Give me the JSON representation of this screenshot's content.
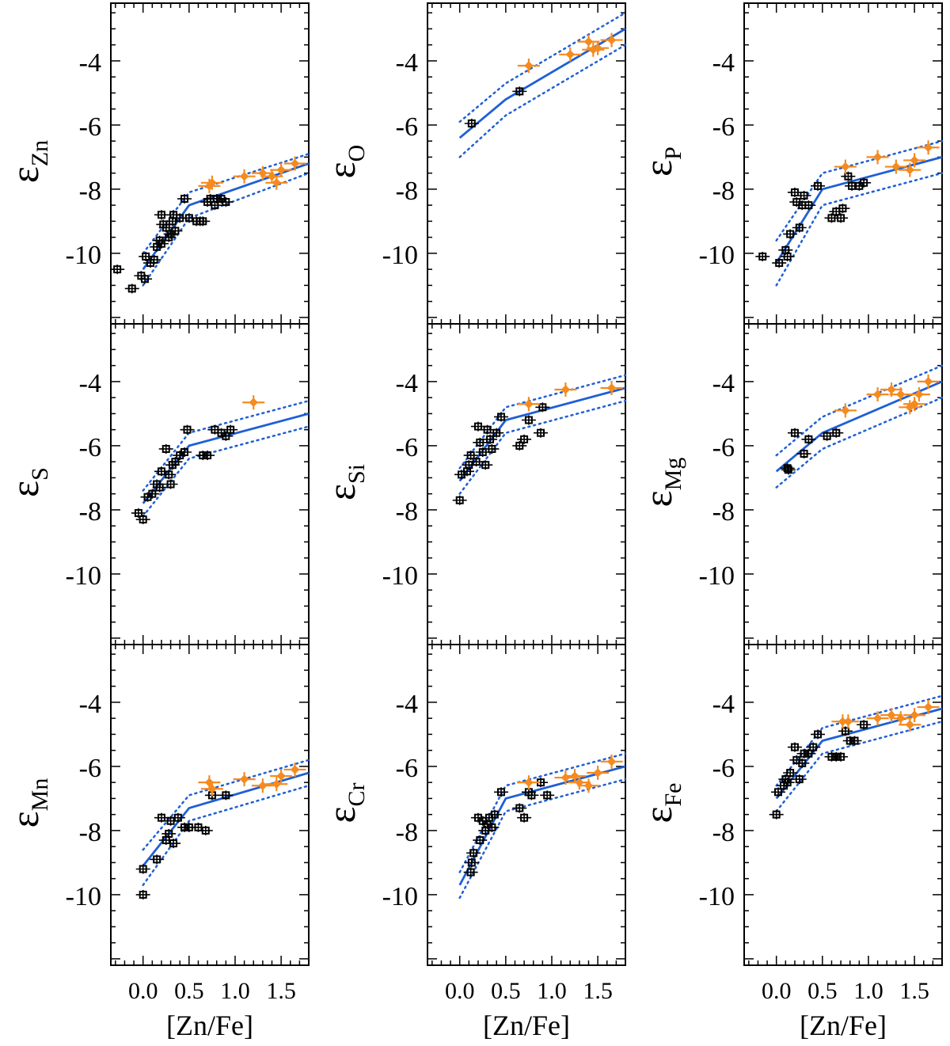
{
  "colors": {
    "model_line": "#1f5fd6",
    "orange_points": "#f58a1f",
    "black_points": "#000000",
    "axes": "#000000"
  },
  "chart_data": {
    "type": "scatter",
    "x_label": "[Zn/Fe]",
    "x_ticks": [
      "0.0",
      "0.5",
      "1.0",
      "1.5"
    ],
    "x_lim": [
      -0.35,
      1.8
    ],
    "y_lim": [
      -12.2,
      -2.2
    ],
    "y_ticks": [
      "-4",
      "-6",
      "-8",
      "-10"
    ],
    "panels": [
      {
        "element": "Zn",
        "ylabel_base": "ε",
        "ylabel_sub": "Zn",
        "model": {
          "x": [
            0.0,
            0.5,
            1.8
          ],
          "y": [
            -10.5,
            -8.5,
            -7.2
          ]
        },
        "band_upper": {
          "x": [
            0.0,
            0.5,
            1.8
          ],
          "y": [
            -10.0,
            -8.1,
            -6.9
          ]
        },
        "band_lower": {
          "x": [
            0.0,
            0.5,
            1.8
          ],
          "y": [
            -11.0,
            -8.9,
            -7.5
          ]
        },
        "black_points": [
          [
            -0.28,
            -10.5
          ],
          [
            -0.12,
            -11.1
          ],
          [
            -0.02,
            -10.7
          ],
          [
            0.02,
            -10.8
          ],
          [
            0.03,
            -10.1
          ],
          [
            0.08,
            -10.3
          ],
          [
            0.12,
            -10.2
          ],
          [
            0.15,
            -9.8
          ],
          [
            0.18,
            -9.6
          ],
          [
            0.2,
            -9.7
          ],
          [
            0.22,
            -9.1
          ],
          [
            0.2,
            -8.8
          ],
          [
            0.25,
            -9.2
          ],
          [
            0.28,
            -9.5
          ],
          [
            0.3,
            -9.4
          ],
          [
            0.32,
            -9.0
          ],
          [
            0.33,
            -8.8
          ],
          [
            0.35,
            -9.3
          ],
          [
            0.4,
            -8.9
          ],
          [
            0.45,
            -8.3
          ],
          [
            0.5,
            -8.9
          ],
          [
            0.58,
            -9.0
          ],
          [
            0.62,
            -9.0
          ],
          [
            0.65,
            -9.0
          ],
          [
            0.7,
            -8.4
          ],
          [
            0.73,
            -8.3
          ],
          [
            0.78,
            -8.5
          ],
          [
            0.8,
            -8.3
          ],
          [
            0.9,
            -8.4
          ],
          [
            0.85,
            -8.3
          ]
        ],
        "orange_points": [
          [
            0.72,
            -7.9
          ],
          [
            0.75,
            -7.8
          ],
          [
            1.1,
            -7.6
          ],
          [
            1.3,
            -7.5
          ],
          [
            1.4,
            -7.6
          ],
          [
            1.45,
            -7.8
          ],
          [
            1.5,
            -7.4
          ],
          [
            1.65,
            -7.2
          ]
        ]
      },
      {
        "element": "O",
        "ylabel_base": "ε",
        "ylabel_sub": "O",
        "model": {
          "x": [
            0.0,
            0.5,
            1.8
          ],
          "y": [
            -6.4,
            -5.2,
            -3.0
          ]
        },
        "band_upper": {
          "x": [
            0.0,
            0.5,
            1.8
          ],
          "y": [
            -5.9,
            -4.7,
            -2.5
          ]
        },
        "band_lower": {
          "x": [
            0.0,
            0.5,
            1.8
          ],
          "y": [
            -7.0,
            -5.7,
            -3.5
          ]
        },
        "black_points": [
          [
            0.13,
            -5.95
          ],
          [
            0.65,
            -4.95
          ]
        ],
        "orange_points": [
          [
            0.75,
            -4.15
          ],
          [
            1.2,
            -3.8
          ],
          [
            1.4,
            -3.4
          ],
          [
            1.45,
            -3.65
          ],
          [
            1.5,
            -3.6
          ],
          [
            1.65,
            -3.35
          ]
        ]
      },
      {
        "element": "P",
        "ylabel_base": "ε",
        "ylabel_sub": "P",
        "model": {
          "x": [
            0.0,
            0.5,
            1.8
          ],
          "y": [
            -10.3,
            -8.0,
            -7.0
          ]
        },
        "band_upper": {
          "x": [
            0.0,
            0.5,
            1.8
          ],
          "y": [
            -9.6,
            -7.5,
            -6.5
          ]
        },
        "band_lower": {
          "x": [
            0.0,
            0.5,
            1.8
          ],
          "y": [
            -11.0,
            -8.5,
            -7.5
          ]
        },
        "black_points": [
          [
            -0.15,
            -10.1
          ],
          [
            0.03,
            -10.3
          ],
          [
            0.1,
            -9.9
          ],
          [
            0.12,
            -10.1
          ],
          [
            0.15,
            -9.4
          ],
          [
            0.2,
            -8.1
          ],
          [
            0.22,
            -8.4
          ],
          [
            0.25,
            -9.2
          ],
          [
            0.28,
            -8.5
          ],
          [
            0.3,
            -8.2
          ],
          [
            0.35,
            -8.5
          ],
          [
            0.45,
            -7.9
          ],
          [
            0.6,
            -8.9
          ],
          [
            0.65,
            -8.7
          ],
          [
            0.7,
            -8.9
          ],
          [
            0.72,
            -8.6
          ],
          [
            0.78,
            -7.6
          ],
          [
            0.82,
            -7.9
          ],
          [
            0.9,
            -7.9
          ],
          [
            0.95,
            -7.8
          ]
        ],
        "orange_points": [
          [
            0.75,
            -7.3
          ],
          [
            1.1,
            -7.0
          ],
          [
            1.3,
            -7.3
          ],
          [
            1.45,
            -7.4
          ],
          [
            1.5,
            -7.1
          ],
          [
            1.65,
            -6.7
          ]
        ]
      },
      {
        "element": "S",
        "ylabel_base": "ε",
        "ylabel_sub": "S",
        "model": {
          "x": [
            0.0,
            0.5,
            1.8
          ],
          "y": [
            -7.8,
            -6.0,
            -5.0
          ]
        },
        "band_upper": {
          "x": [
            0.0,
            0.5,
            1.8
          ],
          "y": [
            -7.4,
            -5.6,
            -4.6
          ]
        },
        "band_lower": {
          "x": [
            0.0,
            0.5,
            1.8
          ],
          "y": [
            -8.2,
            -6.4,
            -5.4
          ]
        },
        "black_points": [
          [
            -0.05,
            -8.1
          ],
          [
            0.0,
            -8.3
          ],
          [
            0.05,
            -7.6
          ],
          [
            0.1,
            -7.5
          ],
          [
            0.15,
            -7.2
          ],
          [
            0.18,
            -7.3
          ],
          [
            0.2,
            -6.8
          ],
          [
            0.25,
            -6.1
          ],
          [
            0.28,
            -6.9
          ],
          [
            0.3,
            -7.2
          ],
          [
            0.32,
            -6.6
          ],
          [
            0.35,
            -6.5
          ],
          [
            0.4,
            -6.3
          ],
          [
            0.45,
            -6.2
          ],
          [
            0.48,
            -5.5
          ],
          [
            0.65,
            -6.3
          ],
          [
            0.7,
            -6.3
          ],
          [
            0.78,
            -5.5
          ],
          [
            0.85,
            -5.6
          ],
          [
            0.9,
            -5.7
          ],
          [
            0.95,
            -5.5
          ]
        ],
        "orange_points": [
          [
            1.2,
            -4.65
          ]
        ]
      },
      {
        "element": "Si",
        "ylabel_base": "ε",
        "ylabel_sub": "Si",
        "model": {
          "x": [
            0.0,
            0.5,
            1.8
          ],
          "y": [
            -7.1,
            -5.2,
            -4.2
          ]
        },
        "band_upper": {
          "x": [
            0.0,
            0.5,
            1.8
          ],
          "y": [
            -6.7,
            -4.8,
            -3.8
          ]
        },
        "band_lower": {
          "x": [
            0.0,
            0.5,
            1.8
          ],
          "y": [
            -7.5,
            -5.6,
            -4.6
          ]
        },
        "black_points": [
          [
            0.0,
            -7.7
          ],
          [
            0.02,
            -6.9
          ],
          [
            0.08,
            -6.8
          ],
          [
            0.1,
            -6.6
          ],
          [
            0.12,
            -6.3
          ],
          [
            0.18,
            -6.5
          ],
          [
            0.2,
            -5.4
          ],
          [
            0.22,
            -5.9
          ],
          [
            0.25,
            -6.2
          ],
          [
            0.28,
            -6.6
          ],
          [
            0.3,
            -5.5
          ],
          [
            0.33,
            -5.8
          ],
          [
            0.35,
            -6.1
          ],
          [
            0.4,
            -5.6
          ],
          [
            0.45,
            -5.1
          ],
          [
            0.65,
            -6.0
          ],
          [
            0.7,
            -5.8
          ],
          [
            0.75,
            -5.2
          ],
          [
            0.9,
            -4.8
          ],
          [
            0.88,
            -5.6
          ]
        ],
        "orange_points": [
          [
            0.75,
            -4.7
          ],
          [
            1.15,
            -4.25
          ],
          [
            1.65,
            -4.2
          ]
        ]
      },
      {
        "element": "Mg",
        "ylabel_base": "ε",
        "ylabel_sub": "Mg",
        "model": {
          "x": [
            0.0,
            0.5,
            1.8
          ],
          "y": [
            -6.8,
            -5.6,
            -4.0
          ]
        },
        "band_upper": {
          "x": [
            0.0,
            0.5,
            1.8
          ],
          "y": [
            -6.3,
            -5.1,
            -3.5
          ]
        },
        "band_lower": {
          "x": [
            0.0,
            0.5,
            1.8
          ],
          "y": [
            -7.3,
            -6.1,
            -4.5
          ]
        },
        "black_points": [
          [
            0.12,
            -6.7
          ],
          [
            0.13,
            -6.75
          ],
          [
            0.2,
            -5.6
          ],
          [
            0.3,
            -6.25
          ],
          [
            0.35,
            -5.8
          ],
          [
            0.55,
            -5.7
          ],
          [
            0.65,
            -5.6
          ]
        ],
        "orange_points": [
          [
            0.75,
            -4.9
          ],
          [
            1.1,
            -4.4
          ],
          [
            1.25,
            -4.25
          ],
          [
            1.35,
            -4.4
          ],
          [
            1.45,
            -4.8
          ],
          [
            1.5,
            -4.7
          ],
          [
            1.55,
            -4.4
          ],
          [
            1.65,
            -4.0
          ]
        ]
      },
      {
        "element": "Mn",
        "ylabel_base": "ε",
        "ylabel_sub": "Mn",
        "model": {
          "x": [
            0.0,
            0.5,
            1.8
          ],
          "y": [
            -9.1,
            -7.3,
            -6.2
          ]
        },
        "band_upper": {
          "x": [
            0.0,
            0.5,
            1.8
          ],
          "y": [
            -8.6,
            -6.9,
            -5.8
          ]
        },
        "band_lower": {
          "x": [
            0.0,
            0.5,
            1.8
          ],
          "y": [
            -9.7,
            -7.7,
            -6.6
          ]
        },
        "black_points": [
          [
            0.0,
            -10.0
          ],
          [
            0.0,
            -9.2
          ],
          [
            0.15,
            -8.9
          ],
          [
            0.2,
            -7.6
          ],
          [
            0.25,
            -8.3
          ],
          [
            0.28,
            -8.1
          ],
          [
            0.3,
            -7.7
          ],
          [
            0.33,
            -8.4
          ],
          [
            0.38,
            -7.6
          ],
          [
            0.45,
            -7.9
          ],
          [
            0.5,
            -7.9
          ],
          [
            0.6,
            -7.9
          ],
          [
            0.68,
            -8.0
          ],
          [
            0.75,
            -6.9
          ],
          [
            0.9,
            -6.9
          ]
        ],
        "orange_points": [
          [
            0.72,
            -6.5
          ],
          [
            0.75,
            -6.7
          ],
          [
            1.1,
            -6.4
          ],
          [
            1.3,
            -6.6
          ],
          [
            1.45,
            -6.55
          ],
          [
            1.5,
            -6.3
          ],
          [
            1.65,
            -6.1
          ]
        ]
      },
      {
        "element": "Cr",
        "ylabel_base": "ε",
        "ylabel_sub": "Cr",
        "model": {
          "x": [
            0.0,
            0.5,
            1.8
          ],
          "y": [
            -9.7,
            -7.0,
            -6.0
          ]
        },
        "band_upper": {
          "x": [
            0.0,
            0.5,
            1.8
          ],
          "y": [
            -9.3,
            -6.6,
            -5.6
          ]
        },
        "band_lower": {
          "x": [
            0.0,
            0.5,
            1.8
          ],
          "y": [
            -10.1,
            -7.4,
            -6.4
          ]
        },
        "black_points": [
          [
            0.12,
            -9.3
          ],
          [
            0.13,
            -9.0
          ],
          [
            0.15,
            -8.7
          ],
          [
            0.2,
            -7.6
          ],
          [
            0.22,
            -8.3
          ],
          [
            0.25,
            -7.7
          ],
          [
            0.28,
            -8.0
          ],
          [
            0.3,
            -7.8
          ],
          [
            0.32,
            -7.6
          ],
          [
            0.35,
            -7.9
          ],
          [
            0.38,
            -7.5
          ],
          [
            0.45,
            -6.8
          ],
          [
            0.65,
            -7.3
          ],
          [
            0.7,
            -7.6
          ],
          [
            0.75,
            -6.8
          ],
          [
            0.78,
            -6.9
          ],
          [
            0.88,
            -6.5
          ],
          [
            0.95,
            -6.9
          ]
        ],
        "orange_points": [
          [
            0.75,
            -6.5
          ],
          [
            1.15,
            -6.35
          ],
          [
            1.25,
            -6.3
          ],
          [
            1.3,
            -6.5
          ],
          [
            1.4,
            -6.6
          ],
          [
            1.5,
            -6.2
          ],
          [
            1.65,
            -5.85
          ]
        ]
      },
      {
        "element": "Fe",
        "ylabel_base": "ε",
        "ylabel_sub": "Fe",
        "model": {
          "x": [
            0.0,
            0.5,
            1.8
          ],
          "y": [
            -7.0,
            -5.2,
            -4.2
          ]
        },
        "band_upper": {
          "x": [
            0.0,
            0.5,
            1.8
          ],
          "y": [
            -6.6,
            -4.8,
            -3.8
          ]
        },
        "band_lower": {
          "x": [
            0.0,
            0.5,
            1.8
          ],
          "y": [
            -7.4,
            -5.6,
            -4.6
          ]
        },
        "black_points": [
          [
            0.0,
            -7.5
          ],
          [
            0.02,
            -6.8
          ],
          [
            0.08,
            -6.6
          ],
          [
            0.1,
            -6.4
          ],
          [
            0.12,
            -6.5
          ],
          [
            0.15,
            -6.2
          ],
          [
            0.2,
            -5.4
          ],
          [
            0.22,
            -5.8
          ],
          [
            0.25,
            -6.4
          ],
          [
            0.28,
            -5.9
          ],
          [
            0.3,
            -5.6
          ],
          [
            0.35,
            -5.6
          ],
          [
            0.4,
            -5.4
          ],
          [
            0.45,
            -5.0
          ],
          [
            0.6,
            -5.7
          ],
          [
            0.65,
            -5.7
          ],
          [
            0.7,
            -5.7
          ],
          [
            0.75,
            -4.9
          ],
          [
            0.8,
            -5.2
          ],
          [
            0.85,
            -5.2
          ],
          [
            0.95,
            -4.7
          ]
        ],
        "orange_points": [
          [
            0.72,
            -4.6
          ],
          [
            0.78,
            -4.6
          ],
          [
            1.1,
            -4.5
          ],
          [
            1.25,
            -4.4
          ],
          [
            1.35,
            -4.5
          ],
          [
            1.45,
            -4.7
          ],
          [
            1.5,
            -4.4
          ],
          [
            1.65,
            -4.15
          ]
        ]
      }
    ]
  }
}
